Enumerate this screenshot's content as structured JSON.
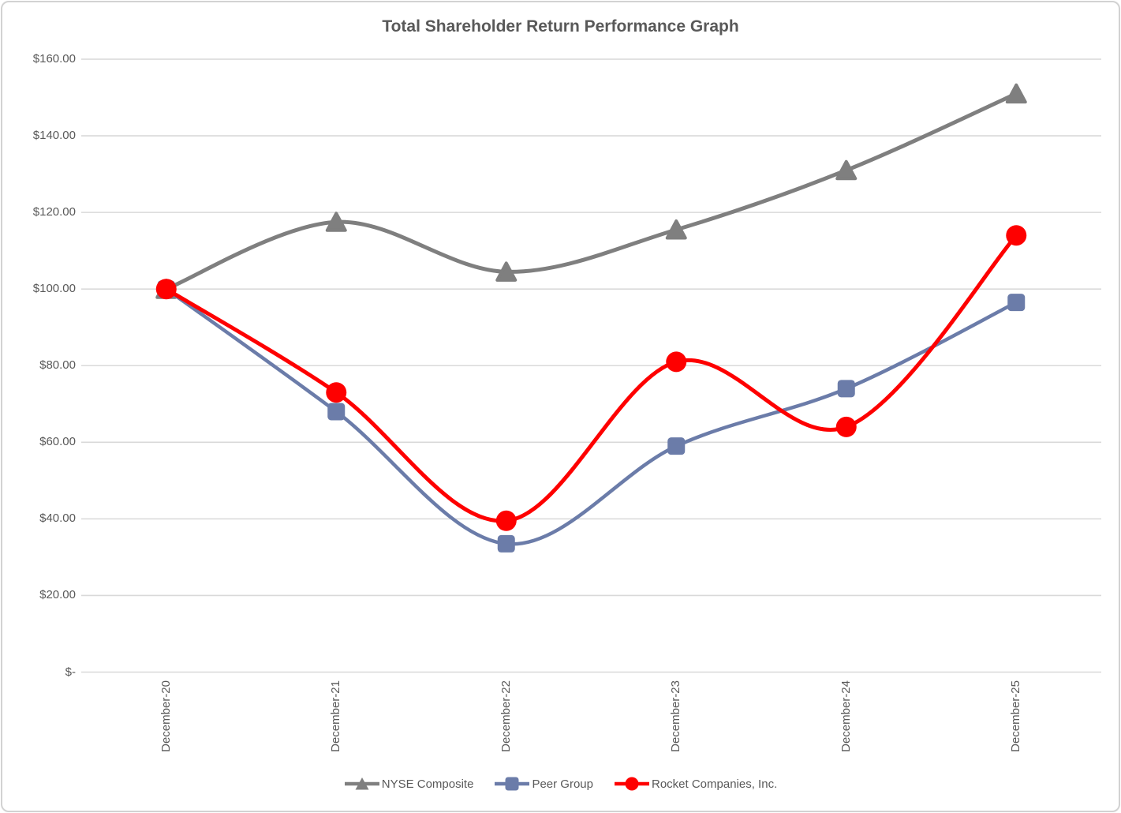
{
  "chart_data": {
    "type": "line",
    "title": "Total Shareholder Return Performance Graph",
    "categories": [
      "December-20",
      "December-21",
      "December-22",
      "December-23",
      "December-24",
      "December-25"
    ],
    "series": [
      {
        "name": "NYSE Composite",
        "color": "#7F7F7F",
        "marker": "triangle",
        "values": [
          100.0,
          117.5,
          104.5,
          115.5,
          131.0,
          151.0
        ]
      },
      {
        "name": "Peer Group",
        "color": "#6B7CA9",
        "marker": "square",
        "values": [
          100.0,
          68.0,
          33.5,
          59.0,
          74.0,
          96.5
        ]
      },
      {
        "name": "Rocket Companies, Inc.",
        "color": "#FE0000",
        "marker": "circle",
        "values": [
          100.0,
          73.0,
          39.5,
          81.0,
          64.0,
          114.0
        ]
      }
    ],
    "ylabel": "",
    "xlabel": "",
    "ylim": [
      0,
      160
    ],
    "ytick_interval": 20,
    "ytick_labels": [
      "$160.00",
      "$140.00",
      "$120.00",
      "$100.00",
      "$80.00",
      "$60.00",
      "$40.00",
      "$20.00",
      "$-"
    ],
    "grid": "horizontal",
    "gridline_color": "#D9D9D9",
    "smooth_lines": true,
    "legend_position": "bottom",
    "x_labels_rotated_degrees": 90,
    "text_color": "#595959"
  }
}
